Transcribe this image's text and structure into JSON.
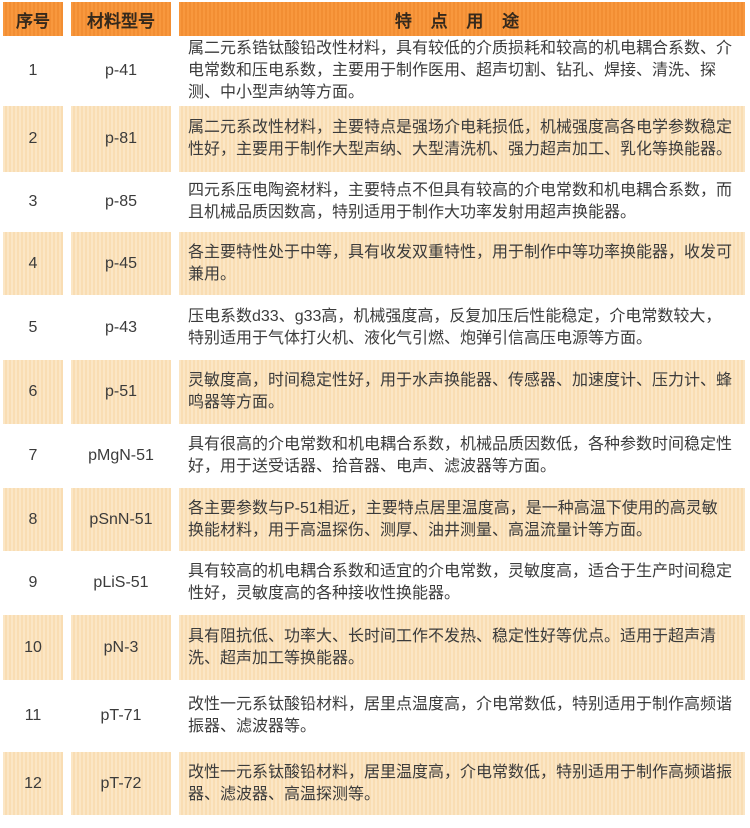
{
  "colors": {
    "header_bg": "#f5933a",
    "alt_row_bg": "#fae2bc",
    "row_bg": "#ffffff",
    "header_text": "#35291c",
    "body_text": "#3b3b3b"
  },
  "table": {
    "headers": {
      "no": "序号",
      "model": "材料型号",
      "features": "特 点 用 途"
    },
    "rows": [
      {
        "no": "1",
        "model": "p-41",
        "desc": "属二元系锆钛酸铅改性材料，具有较低的介质损耗和较高的机电耦合系数、介电常数和压电系数，主要用于制作医用、超声切割、钻孔、焊接、清洗、探测、中小型声纳等方面。"
      },
      {
        "no": "2",
        "model": "p-81",
        "desc": "属二元系改性材料，主要特点是强场介电耗损低，机械强度高各电学参数稳定性好，主要用于制作大型声纳、大型清洗机、强力超声加工、乳化等换能器。"
      },
      {
        "no": "3",
        "model": "p-85",
        "desc": "四元系压电陶瓷材料，主要特点不但具有较高的介电常数和机电耦合系数，而且机械品质因数高，特别适用于制作大功率发射用超声换能器。"
      },
      {
        "no": "4",
        "model": "p-45",
        "desc": "各主要特性处于中等，具有收发双重特性，用于制作中等功率换能器，收发可兼用。"
      },
      {
        "no": "5",
        "model": "p-43",
        "desc": "压电系数d33、g33高，机械强度高，反复加压后性能稳定，介电常数较大，特别适用于气体打火机、液化气引燃、炮弹引信高压电源等方面。"
      },
      {
        "no": "6",
        "model": "p-51",
        "desc": "灵敏度高，时间稳定性好，用于水声换能器、传感器、加速度计、压力计、蜂鸣器等方面。"
      },
      {
        "no": "7",
        "model": "pMgN-51",
        "desc": "具有很高的介电常数和机电耦合系数，机械品质因数低，各种参数时间稳定性好，用于送受话器、拾音器、电声、滤波器等方面。"
      },
      {
        "no": "8",
        "model": "pSnN-51",
        "desc": "各主要参数与P-51相近，主要特点居里温度高，是一种高温下使用的高灵敏换能材料，用于高温探伤、测厚、油井测量、高温流量计等方面。"
      },
      {
        "no": "9",
        "model": "pLiS-51",
        "desc": "具有较高的机电耦合系数和适宜的介电常数，灵敏度高，适合于生产时间稳定性好，灵敏度高的各种接收性换能器。"
      },
      {
        "no": "10",
        "model": "pN-3",
        "desc": "具有阻抗低、功率大、长时间工作不发热、稳定性好等优点。适用于超声清洗、超声加工等换能器。"
      },
      {
        "no": "11",
        "model": "pT-71",
        "desc": "改性一元系钛酸铅材料，居里点温度高，介电常数低，特别适用于制作高频谐振器、滤波器等。"
      },
      {
        "no": "12",
        "model": "pT-72",
        "desc": "改性一元系钛酸铅材料，居里温度高，介电常数低，特别适用于制作高频谐振器、滤波器、高温探测等。"
      }
    ]
  }
}
